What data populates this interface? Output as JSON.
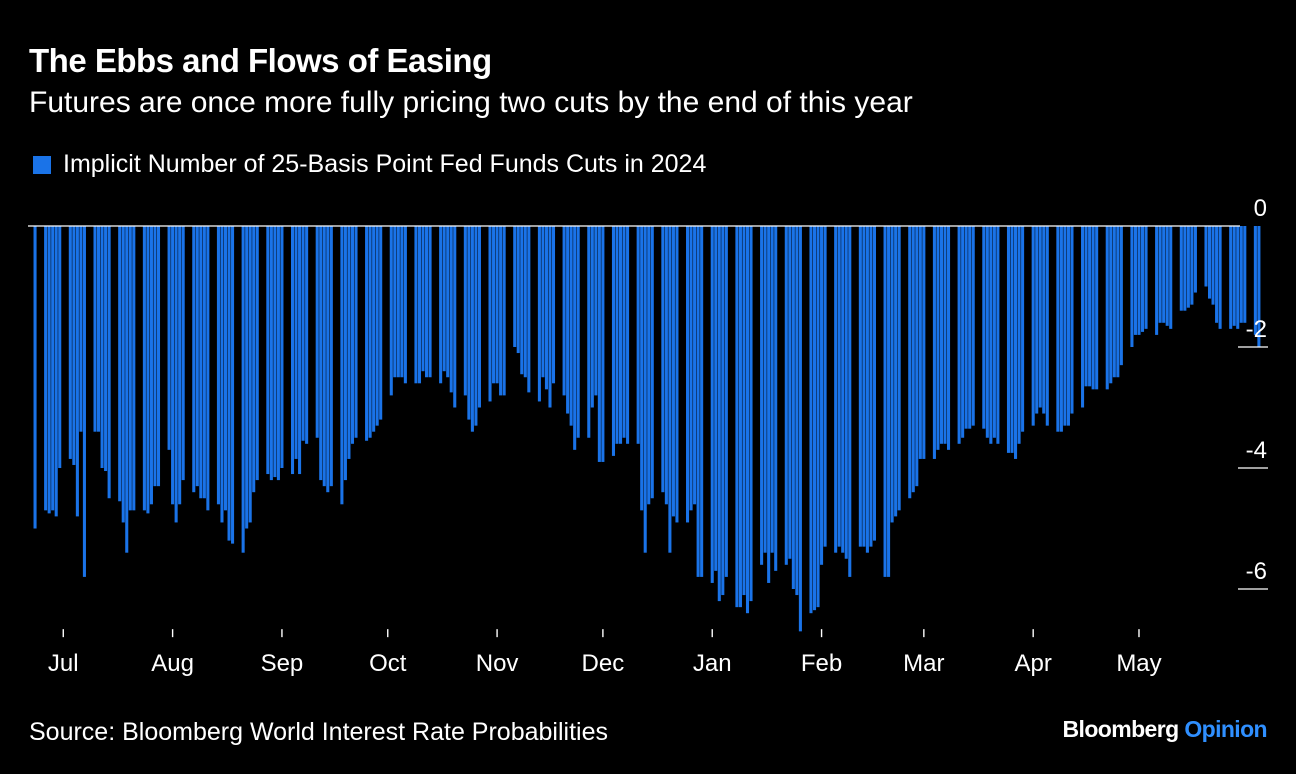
{
  "header": {
    "title": "The Ebbs and Flows of Easing",
    "subtitle": "Futures are once more fully pricing two cuts by the end of this year"
  },
  "footer": {
    "source": "Source: Bloomberg World Interest Rate Probabilities",
    "brand_primary": "Bloomberg",
    "brand_secondary": "Opinion"
  },
  "colors": {
    "bar": "#1a73e8",
    "background": "#000000",
    "text": "#ffffff",
    "brand_accent": "#2f8fff"
  },
  "chart_data": {
    "type": "bar",
    "title": "The Ebbs and Flows of Easing",
    "subtitle": "Futures are once more fully pricing two cuts by the end of this year",
    "legend": [
      "Implicit Number of 25-Basis Point Fed Funds Cuts in 2024"
    ],
    "legend_placement": "top-left",
    "y_axis_side": "right",
    "ylim": [
      -6.3,
      0
    ],
    "yticks": [
      0,
      -2,
      -4,
      -6
    ],
    "ytick_labels": [
      "0",
      "-2",
      "-4",
      "-6"
    ],
    "grid": false,
    "x_range": [
      "2023-06-21",
      "2024-05-20"
    ],
    "x_month_ticks": [
      {
        "date": "2023-07-01",
        "label": "Jul",
        "year": "2023"
      },
      {
        "date": "2023-08-01",
        "label": "Aug"
      },
      {
        "date": "2023-09-01",
        "label": "Sep"
      },
      {
        "date": "2023-10-01",
        "label": "Oct"
      },
      {
        "date": "2023-11-01",
        "label": "Nov"
      },
      {
        "date": "2023-12-01",
        "label": "Dec"
      },
      {
        "date": "2024-01-01",
        "label": "Jan",
        "year": "2024"
      },
      {
        "date": "2024-02-01",
        "label": "Feb"
      },
      {
        "date": "2024-03-01",
        "label": "Mar"
      },
      {
        "date": "2024-04-01",
        "label": "Apr"
      },
      {
        "date": "2024-05-01",
        "label": "May"
      }
    ],
    "series": [
      {
        "name": "Implicit Number of 25-Basis Point Fed Funds Cuts in 2024",
        "start_date": "2023-06-23",
        "frequency": "business-daily",
        "values": [
          -5.0,
          -4.7,
          -4.75,
          -4.7,
          -4.8,
          -4.0,
          -3.85,
          -3.95,
          -4.8,
          -3.4,
          -5.8,
          -3.4,
          -3.4,
          -4.0,
          -4.05,
          -4.5,
          -4.55,
          -4.9,
          -5.4,
          -4.7,
          -4.7,
          -4.7,
          -4.75,
          -4.6,
          -4.3,
          -4.3,
          -3.7,
          -4.6,
          -4.9,
          -4.6,
          -4.2,
          -4.4,
          -4.3,
          -4.5,
          -4.5,
          -4.7,
          -4.6,
          -4.9,
          -4.7,
          -5.2,
          -5.25,
          -5.4,
          -5.0,
          -4.9,
          -4.4,
          -4.2,
          -4.1,
          -4.2,
          -4.15,
          -4.2,
          -4.0,
          -4.1,
          -3.85,
          -4.1,
          -3.55,
          -3.6,
          -3.5,
          -4.2,
          -4.3,
          -4.4,
          -4.3,
          -4.6,
          -4.2,
          -3.85,
          -3.6,
          -3.5,
          -3.55,
          -3.5,
          -3.4,
          -3.3,
          -3.2,
          -2.8,
          -2.5,
          -2.5,
          -2.5,
          -2.6,
          -2.6,
          -2.6,
          -2.4,
          -2.5,
          -2.5,
          -2.6,
          -2.4,
          -2.5,
          -2.75,
          -3.0,
          -2.8,
          -3.2,
          -3.4,
          -3.3,
          -3.0,
          -2.9,
          -2.6,
          -2.6,
          -2.8,
          -2.8,
          -2.0,
          -2.1,
          -2.45,
          -2.5,
          -2.75,
          -2.9,
          -2.5,
          -2.7,
          -3.0,
          -2.6,
          -2.8,
          -3.1,
          -3.3,
          -3.7,
          -3.5,
          -3.5,
          -3.0,
          -2.8,
          -3.9,
          -3.9,
          -3.8,
          -3.6,
          -3.6,
          -3.5,
          -3.6,
          -3.6,
          -4.7,
          -5.4,
          -4.6,
          -4.5,
          -4.4,
          -4.6,
          -5.4,
          -4.8,
          -4.9,
          -4.9,
          -4.7,
          -4.6,
          -5.8,
          -5.8,
          -5.9,
          -5.7,
          -6.2,
          -6.1,
          -5.8,
          -6.3,
          -6.3,
          -6.1,
          -6.4,
          -6.2,
          -5.6,
          -5.4,
          -5.9,
          -5.4,
          -5.7,
          -5.6,
          -5.5,
          -6.0,
          -6.1,
          -6.7,
          -6.4,
          -6.35,
          -6.3,
          -5.6,
          -5.3,
          -5.4,
          -5.3,
          -5.4,
          -5.5,
          -5.8,
          -5.3,
          -5.3,
          -5.4,
          -5.3,
          -5.2,
          -5.8,
          -5.8,
          -4.9,
          -4.8,
          -4.7,
          -4.5,
          -4.4,
          -4.3,
          -3.85,
          -3.85,
          -3.85,
          -3.7,
          -3.6,
          -3.6,
          -3.7,
          -3.6,
          -3.5,
          -3.35,
          -3.35,
          -3.3,
          -3.35,
          -3.5,
          -3.6,
          -3.5,
          -3.6,
          -3.75,
          -3.75,
          -3.85,
          -3.6,
          -3.4,
          -3.3,
          -3.1,
          -3.0,
          -3.1,
          -3.3,
          -3.4,
          -3.4,
          -3.3,
          -3.3,
          -3.1,
          -3.0,
          -2.65,
          -2.65,
          -2.7,
          -2.7,
          -2.7,
          -2.6,
          -2.5,
          -2.5,
          -2.3,
          -2.0,
          -1.8,
          -1.8,
          -1.75,
          -1.7,
          -1.8,
          -1.6,
          -1.6,
          -1.65,
          -1.7,
          -1.4,
          -1.4,
          -1.35,
          -1.3,
          -1.1,
          -1.0,
          -1.2,
          -1.3,
          -1.6,
          -1.7,
          -1.7,
          -1.65,
          -1.7,
          -1.6,
          -1.6,
          -1.8,
          -2.0,
          0.0
        ]
      }
    ]
  }
}
